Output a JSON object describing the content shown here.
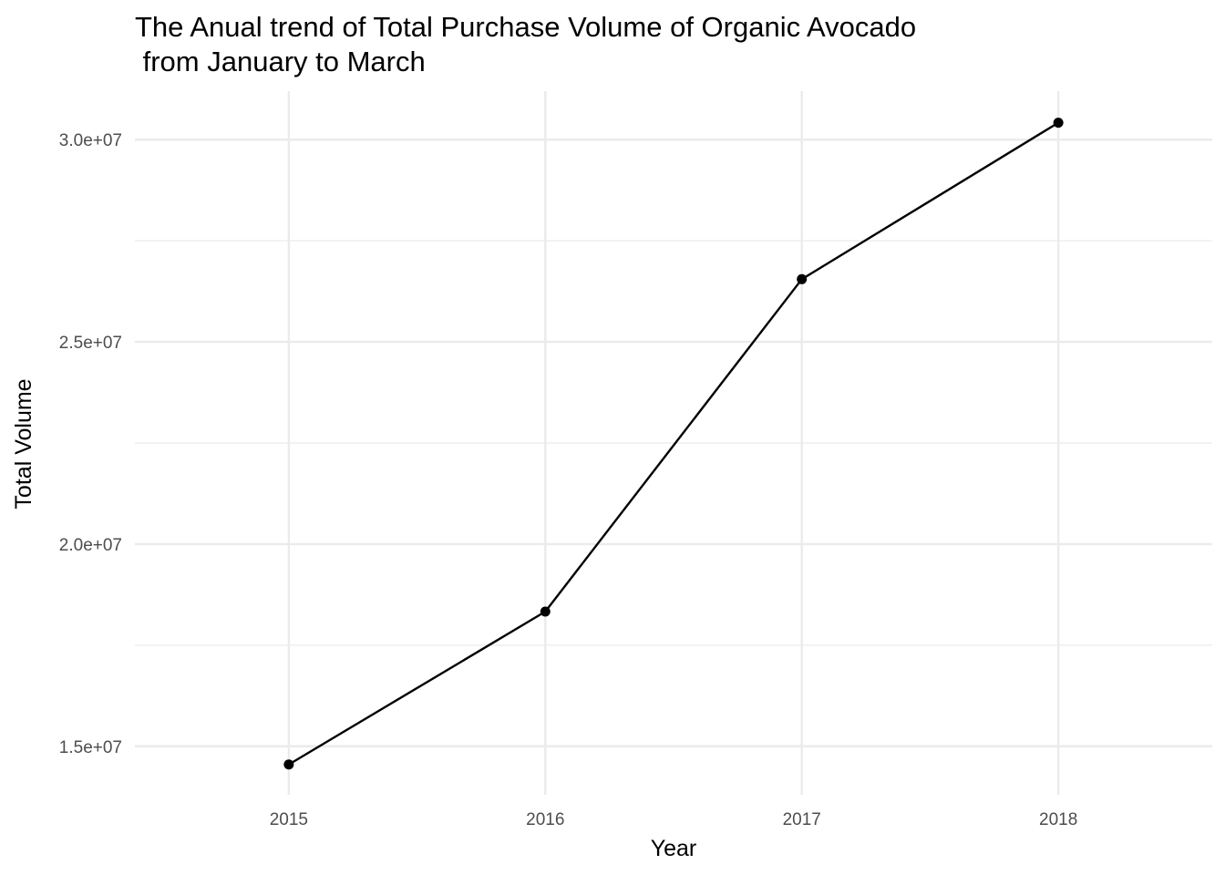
{
  "chart_data": {
    "type": "line",
    "title_lines": [
      "The Anual trend of Total Purchase Volume of Organic Avocado",
      " from January to March"
    ],
    "xlabel": "Year",
    "ylabel": "Total Volume",
    "x": [
      2015,
      2016,
      2017,
      2018
    ],
    "x_tick_labels": [
      "2015",
      "2016",
      "2017",
      "2018"
    ],
    "xlim": [
      2014.4,
      2018.6
    ],
    "y_ticks": [
      15000000,
      20000000,
      25000000,
      30000000
    ],
    "y_tick_labels": [
      "1.5e+07",
      "2.0e+07",
      "2.5e+07",
      "3.0e+07"
    ],
    "y_minor_ticks": [
      17500000,
      22500000,
      27500000
    ],
    "ylim": [
      13800000,
      31200000
    ],
    "series": [
      {
        "values": [
          14550000,
          18330000,
          26550000,
          30420000
        ],
        "color": "#000000"
      }
    ],
    "grid": true,
    "legend": "none"
  }
}
